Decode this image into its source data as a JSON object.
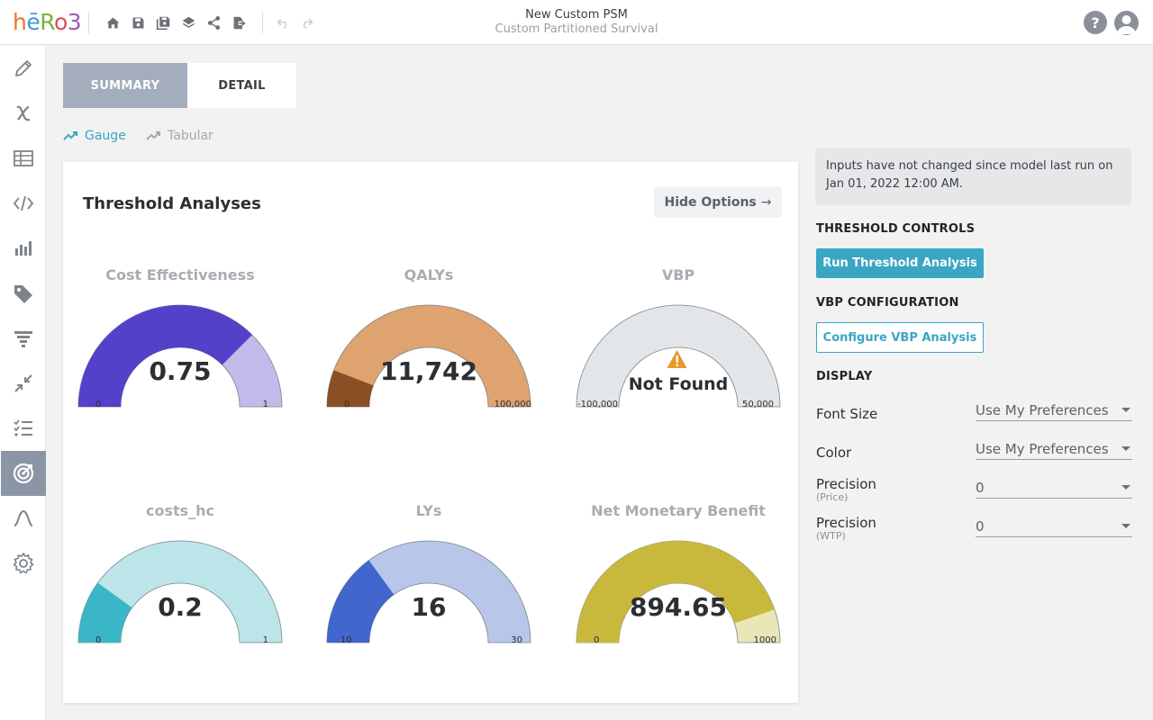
{
  "app": {
    "logo": {
      "p1": "h",
      "p2": "ē",
      "p3": "R",
      "p4": "o",
      "p5": "3"
    },
    "title": "New Custom PSM",
    "subtitle": "Custom Partitioned Survival"
  },
  "toolbar": {
    "icons": [
      "home-icon",
      "save-icon",
      "save-as-icon",
      "layers-icon",
      "share-icon",
      "export-icon",
      "undo-icon",
      "redo-icon"
    ]
  },
  "header_right": {
    "help_label": "?"
  },
  "sidebar": {
    "items": [
      "pencil-icon",
      "variable-x-icon",
      "table-icon",
      "code-icon",
      "bar-chart-icon",
      "tag-icon",
      "filter-icon",
      "compress-icon",
      "checklist-icon",
      "target-icon",
      "curve-icon",
      "gear-icon"
    ],
    "active_index": 9
  },
  "tabs": [
    {
      "label": "SUMMARY",
      "active": true
    },
    {
      "label": "DETAIL",
      "active": false
    }
  ],
  "view_toggle": {
    "gauge_label": "Gauge",
    "tabular_label": "Tabular",
    "active": "Gauge"
  },
  "card": {
    "title": "Threshold Analyses",
    "hide_options_label": "Hide Options",
    "hide_options_arrow": "→"
  },
  "gauges": [
    {
      "title": "Cost Effectiveness",
      "value": "0.75",
      "min": "0",
      "max": "1",
      "fraction": 0.75,
      "fill": "#5341c9",
      "track": "#c4bae9"
    },
    {
      "title": "QALYs",
      "value": "11,742",
      "min": "0",
      "max": "100,000",
      "fraction": 0.117,
      "fill": "#8a4f22",
      "track": "#dfa36f"
    },
    {
      "title": "VBP",
      "value": "Not Found",
      "min": "-100,000",
      "max": "50,000",
      "fraction": 0,
      "fill": "#e3e6e8",
      "track": "#e3e6e8",
      "warning_icon": "warning-icon"
    },
    {
      "title": "costs_hc",
      "value": "0.2",
      "min": "0",
      "max": "1",
      "fraction": 0.2,
      "fill": "#3ab6c7",
      "track": "#bce5ea"
    },
    {
      "title": "LYs",
      "value": "16",
      "min": "10",
      "max": "30",
      "fraction": 0.3,
      "fill": "#4166cd",
      "track": "#b8c6ea"
    },
    {
      "title": "Net Monetary Benefit",
      "value": "894.65",
      "min": "0",
      "max": "1000",
      "fraction": 0.89465,
      "fill": "#c8b93d",
      "track": "#ebe6b5"
    }
  ],
  "right_panel": {
    "notice": "Inputs have not changed since model last run on Jan 01, 2022 12:00 AM.",
    "threshold_controls_label": "THRESHOLD CONTROLS",
    "run_button": "Run Threshold Analysis",
    "vbp_config_label": "VBP CONFIGURATION",
    "config_button": "Configure VBP Analysis",
    "display_label": "DISPLAY",
    "options": [
      {
        "label": "Font Size",
        "sub": "",
        "value": "Use My Preferences"
      },
      {
        "label": "Color",
        "sub": "",
        "value": "Use My Preferences"
      },
      {
        "label": "Precision",
        "sub": "(Price)",
        "value": "0"
      },
      {
        "label": "Precision",
        "sub": "(WTP)",
        "value": "0"
      }
    ]
  },
  "colors": {
    "accent": "#3aa6c4",
    "active_tab": "#a3adbb",
    "sidebar_active": "#8a95a5"
  }
}
